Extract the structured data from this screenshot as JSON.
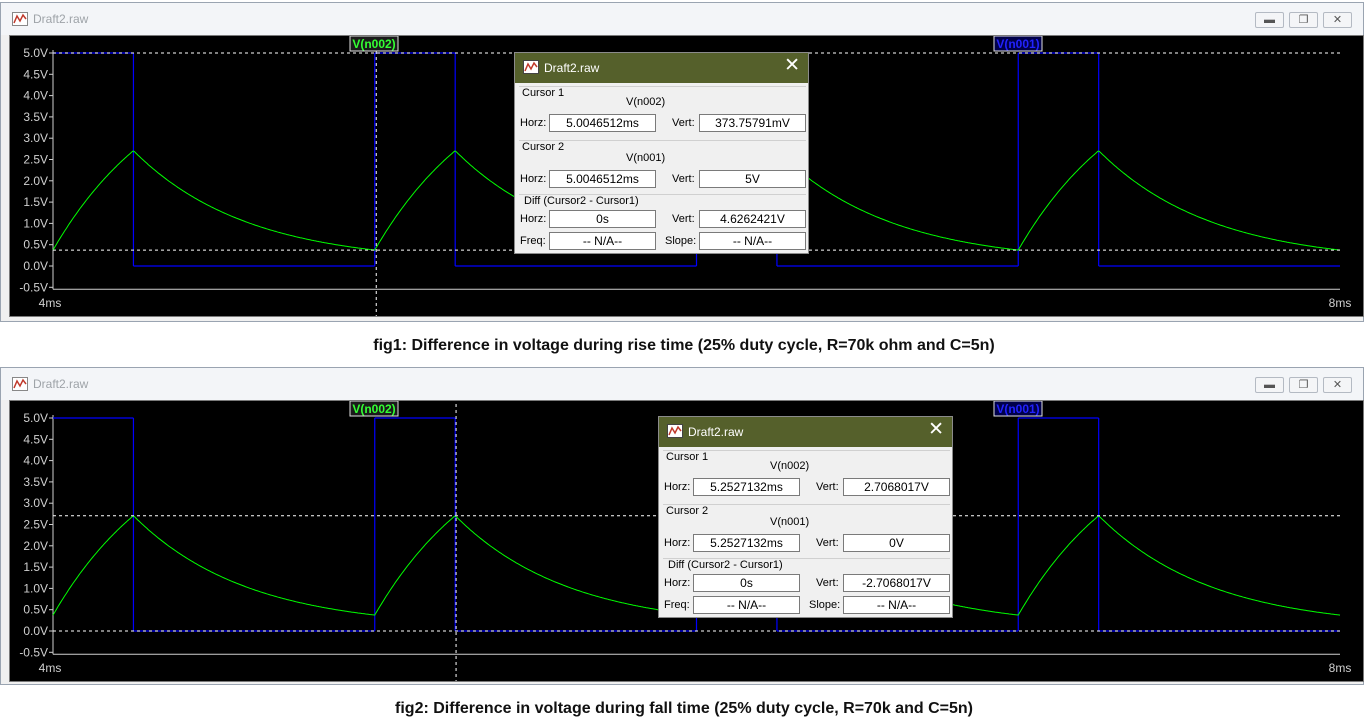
{
  "windows": [
    {
      "title": "Draft2.raw",
      "trace_labels": {
        "n002": "V(n002)",
        "n001": "V(n001)"
      },
      "y_ticks": [
        "5.0V",
        "4.5V",
        "4.0V",
        "3.5V",
        "3.0V",
        "2.5V",
        "2.0V",
        "1.5V",
        "1.0V",
        "0.5V",
        "0.0V",
        "-0.5V"
      ],
      "x_ticks": [
        "4ms",
        "8ms"
      ],
      "cursor_time_ms": 5.0046512,
      "cursor_level_v": 0.37375791,
      "dialog": {
        "title": "Draft2.raw",
        "cursor1": {
          "label": "Cursor 1",
          "trace": "V(n002)",
          "horz_label": "Horz:",
          "horz": "5.0046512ms",
          "vert_label": "Vert:",
          "vert": "373.75791mV"
        },
        "cursor2": {
          "label": "Cursor 2",
          "trace": "V(n001)",
          "horz_label": "Horz:",
          "horz": "5.0046512ms",
          "vert_label": "Vert:",
          "vert": "5V"
        },
        "diff": {
          "label": "Diff (Cursor2 - Cursor1)",
          "horz_label": "Horz:",
          "horz": "0s",
          "vert_label": "Vert:",
          "vert": "4.6262421V",
          "freq_label": "Freq:",
          "freq": "-- N/A--",
          "slope_label": "Slope:",
          "slope": "-- N/A--"
        }
      },
      "caption": "fig1: Difference in voltage during rise time (25% duty cycle, R=70k ohm and C=5n)"
    },
    {
      "title": "Draft2.raw",
      "trace_labels": {
        "n002": "V(n002)",
        "n001": "V(n001)"
      },
      "y_ticks": [
        "5.0V",
        "4.5V",
        "4.0V",
        "3.5V",
        "3.0V",
        "2.5V",
        "2.0V",
        "1.5V",
        "1.0V",
        "0.5V",
        "0.0V",
        "-0.5V"
      ],
      "x_ticks": [
        "4ms",
        "8ms"
      ],
      "cursor_time_ms": 5.2527132,
      "cursor_level_v": 2.7068017,
      "cursor_level2_v": 0.0,
      "dialog": {
        "title": "Draft2.raw",
        "cursor1": {
          "label": "Cursor 1",
          "trace": "V(n002)",
          "horz_label": "Horz:",
          "horz": "5.2527132ms",
          "vert_label": "Vert:",
          "vert": "2.7068017V"
        },
        "cursor2": {
          "label": "Cursor 2",
          "trace": "V(n001)",
          "horz_label": "Horz:",
          "horz": "5.2527132ms",
          "vert_label": "Vert:",
          "vert": "0V"
        },
        "diff": {
          "label": "Diff (Cursor2 - Cursor1)",
          "horz_label": "Horz:",
          "horz": "0s",
          "vert_label": "Vert:",
          "vert": "-2.7068017V",
          "freq_label": "Freq:",
          "freq": "-- N/A--",
          "slope_label": "Slope:",
          "slope": "-- N/A--"
        }
      },
      "caption": "fig2: Difference in voltage during fall time (25% duty cycle, R=70k and C=5n)"
    }
  ],
  "chart_data": {
    "type": "line",
    "xlabel": "",
    "ylabel": "",
    "xlim_ms": [
      4,
      8
    ],
    "ylim_v": [
      -0.5,
      5.0
    ],
    "pulse_period_ms": 1.0,
    "pulse_high_ms": 0.25,
    "series": [
      {
        "name": "V(n001)",
        "color": "#0000ff",
        "shape": "square",
        "low": 0.0,
        "high": 5.0,
        "edges_ms": [
          4.25,
          5.0,
          5.25,
          6.0,
          6.25,
          7.0,
          7.25
        ]
      },
      {
        "name": "V(n002)",
        "color": "#00ff00",
        "shape": "rc",
        "peak": 2.7068017,
        "valley": 0.37375791,
        "start": 0.373,
        "peak_times_ms": [
          4.25,
          5.25,
          7.25
        ],
        "valley_times_ms": [
          5.0,
          7.0,
          8.0
        ]
      }
    ]
  },
  "colors": {
    "plot_bg": "#000000",
    "trace_n001": "#0000ff",
    "trace_n002": "#00ff00",
    "dialog_title": "#55602b"
  }
}
